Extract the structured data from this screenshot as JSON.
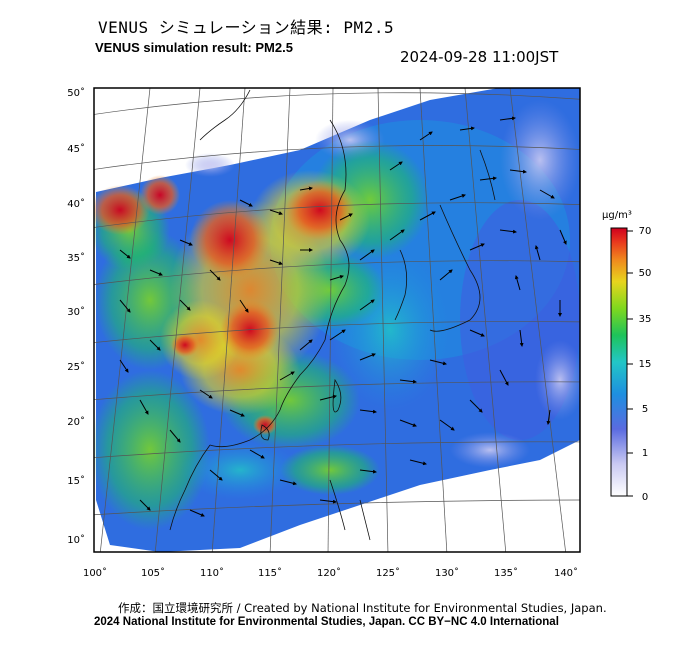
{
  "header": {
    "title_jp": "VENUS シミュレーション結果: PM2.5",
    "title_en": "VENUS simulation result: PM2.5",
    "timestamp": "2024-09-28 11:00JST"
  },
  "colorbar": {
    "unit": "μg/m³",
    "ticks": [
      {
        "label": "70",
        "value": 70
      },
      {
        "label": "50",
        "value": 50
      },
      {
        "label": "35",
        "value": 35
      },
      {
        "label": "15",
        "value": 15
      },
      {
        "label": "5",
        "value": 5
      },
      {
        "label": "1",
        "value": 1
      },
      {
        "label": "0",
        "value": 0
      }
    ],
    "colors": [
      "#ffffff",
      "#c9c9f2",
      "#5a6be0",
      "#1e8fe0",
      "#22c6c6",
      "#1ec35a",
      "#7fd81e",
      "#e8d51e",
      "#f08a1e",
      "#e8361e",
      "#d0001e"
    ]
  },
  "axes": {
    "lon_labels": [
      "100˚",
      "105˚",
      "110˚",
      "115˚",
      "120˚",
      "125˚",
      "130˚",
      "135˚",
      "140˚"
    ],
    "lat_labels": [
      "50˚",
      "45˚",
      "40˚",
      "35˚",
      "30˚",
      "25˚",
      "20˚",
      "15˚",
      "10˚"
    ]
  },
  "footer": {
    "credit_line1": "作成：国立環境研究所 / Created by National Institute for Environmental Studies, Japan.",
    "credit_line2": "2024 National Institute for Environmental Studies, Japan. CC BY−NC 4.0 International"
  }
}
